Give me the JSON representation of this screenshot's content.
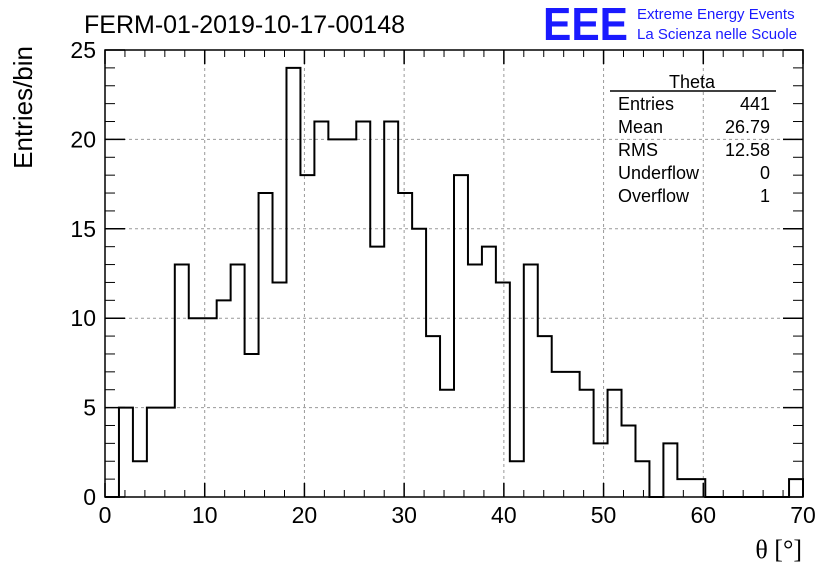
{
  "chart_data": {
    "type": "histogram",
    "title": "FERM-01-2019-10-17-00148",
    "xlabel": "θ [°]",
    "ylabel": "Entries/bin",
    "xlim": [
      0,
      70
    ],
    "ylim": [
      0,
      25
    ],
    "x_ticks": [
      0,
      10,
      20,
      30,
      40,
      50,
      60,
      70
    ],
    "y_ticks": [
      0,
      5,
      10,
      15,
      20,
      25
    ],
    "grid": true,
    "bin_width": 1.4,
    "bin_edges_start": 0,
    "values": [
      0,
      5,
      2,
      5,
      5,
      13,
      10,
      10,
      11,
      13,
      8,
      17,
      12,
      24,
      18,
      21,
      20,
      20,
      21,
      14,
      21,
      17,
      15,
      9,
      6,
      18,
      13,
      14,
      12,
      2,
      13,
      9,
      7,
      7,
      6,
      3,
      6,
      4,
      2,
      0,
      3,
      1,
      1,
      0,
      0,
      0,
      0,
      0,
      0,
      1
    ],
    "stats": {
      "title": "Theta",
      "rows": [
        {
          "label": "Entries",
          "value": "441"
        },
        {
          "label": "Mean",
          "value": "26.79"
        },
        {
          "label": "RMS",
          "value": "12.58"
        },
        {
          "label": "Underflow",
          "value": "0"
        },
        {
          "label": "Overflow",
          "value": "1"
        }
      ]
    }
  },
  "logo": {
    "mark": "EEE",
    "line1": "Extreme Energy Events",
    "line2": "La Scienza nelle Scuole",
    "color": "#1a1aff"
  }
}
